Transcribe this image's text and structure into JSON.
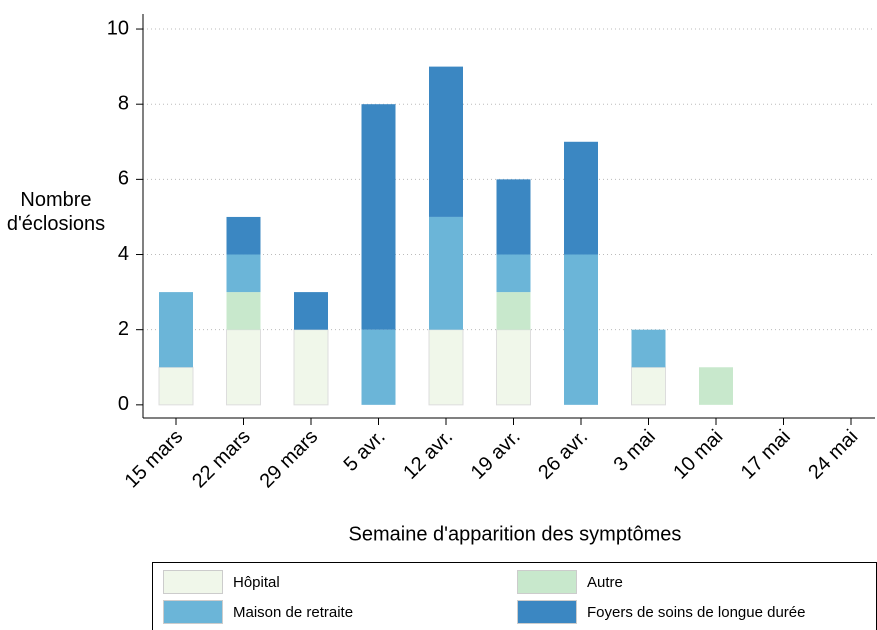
{
  "chart_data": {
    "type": "stacked_bar",
    "y_label": "Nombre d'éclosions",
    "x_label": "Semaine d'apparition des symptômes",
    "categories": [
      "15 mars",
      "22 mars",
      "29 mars",
      "5 avr.",
      "12 avr.",
      "19 avr.",
      "26 avr.",
      "3 mai",
      "10 mai",
      "17 mai",
      "24 mai"
    ],
    "series": [
      {
        "name": "Hôpital",
        "color": "#f0f7ea",
        "values": [
          1,
          2,
          2,
          0,
          2,
          2,
          0,
          1,
          0,
          0,
          0
        ]
      },
      {
        "name": "Autre",
        "color": "#c8e8cc",
        "values": [
          0,
          1,
          0,
          0,
          0,
          1,
          0,
          0,
          1,
          0,
          0
        ]
      },
      {
        "name": "Maison de retraite",
        "color": "#6bb5d8",
        "values": [
          2,
          1,
          0,
          2,
          3,
          1,
          4,
          1,
          0,
          0,
          0
        ]
      },
      {
        "name": "Foyers de soins de longue durée",
        "color": "#3b87c2",
        "values": [
          0,
          1,
          1,
          6,
          4,
          2,
          3,
          0,
          0,
          0,
          0
        ]
      }
    ],
    "ylim": [
      -0.35,
      10.4
    ],
    "yticks": [
      0,
      2,
      4,
      6,
      8,
      10
    ],
    "grid": true
  }
}
